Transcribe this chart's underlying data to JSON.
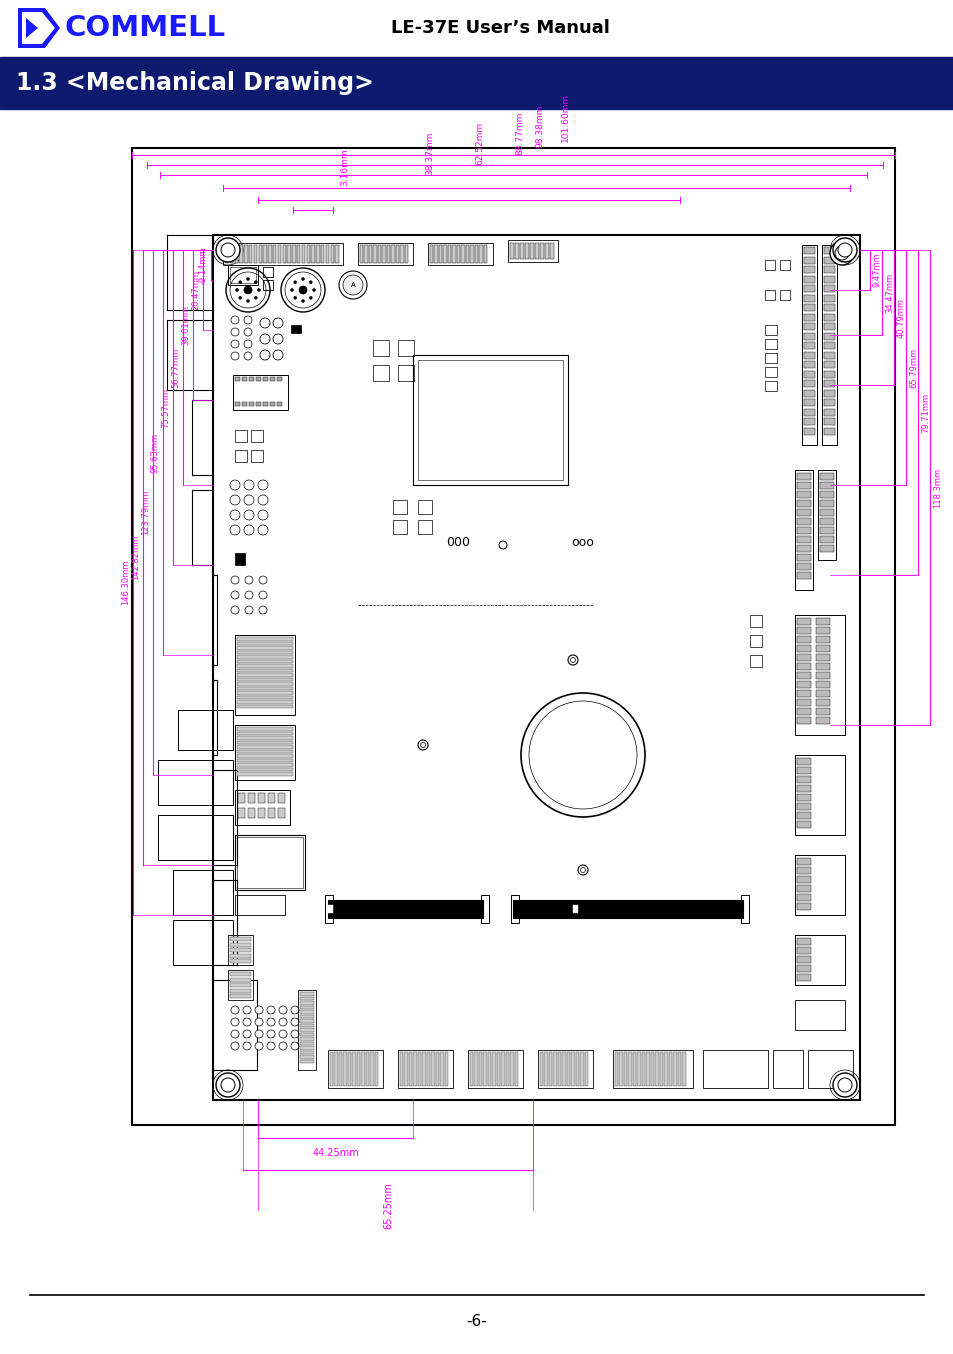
{
  "title_text": "LE-37E User’s Manual",
  "section_title": "1.3 <Mechanical Drawing>",
  "section_bg": "#0d1a6e",
  "section_fg": "#ffffff",
  "page_number": "-6-",
  "logo_color": "#1a1aff",
  "magenta": "#ff00ff",
  "black": "#000000",
  "white": "#ffffff",
  "bg_color": "#ffffff",
  "board_fill": "#ffffff",
  "top_labels": [
    "101.60mm",
    "98.38mm",
    "88.77mm",
    "62.52mm",
    "38.37mm",
    "3.16mm"
  ],
  "left_labels": [
    "-9.14mm",
    "20.47mm",
    "39.01mm",
    "56.77mm",
    "75.57mm",
    "95.63mm",
    "123.79mm",
    "142.82mm",
    "146.30mm"
  ],
  "right_labels": [
    "9.47mm",
    "34.47mm",
    "40.79mm",
    "65.79mm",
    "79.71mm",
    "118.3mm"
  ],
  "bot_labels": [
    "44.25mm",
    "65.25mm"
  ]
}
